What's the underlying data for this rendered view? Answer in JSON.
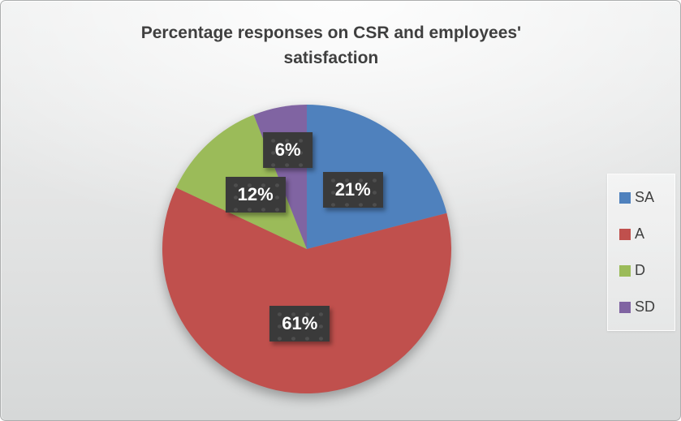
{
  "chart_data": {
    "type": "pie",
    "title": "Percentage responses on CSR and employees' satisfaction",
    "categories": [
      "SA",
      "A",
      "D",
      "SD"
    ],
    "values": [
      21,
      61,
      12,
      6
    ],
    "labels": [
      "21%",
      "61%",
      "12%",
      "6%"
    ],
    "colors": [
      "#4F81BD",
      "#C0504D",
      "#9BBB59",
      "#8064A2"
    ],
    "legend_position": "right",
    "start_angle_deg": 0,
    "direction": "clockwise",
    "data_label_style": "dark-box-white-text",
    "title_color": "#3F3F3F",
    "background": "light-gray-gradient"
  }
}
